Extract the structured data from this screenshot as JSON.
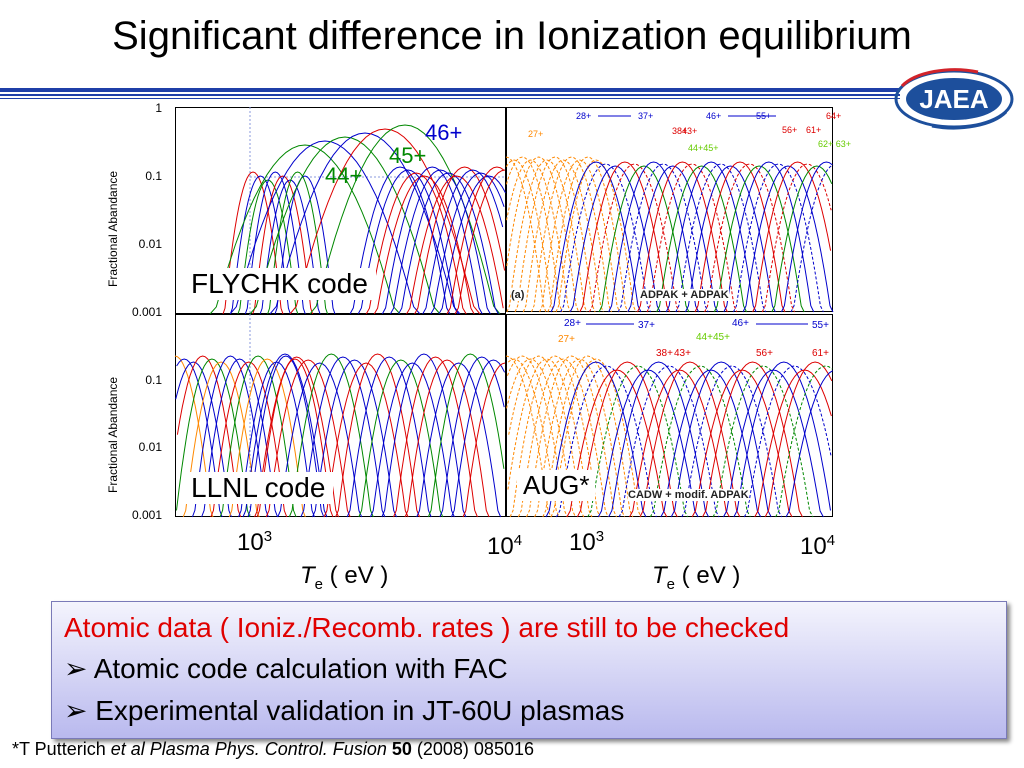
{
  "title": "Significant difference in Ionization equilibrium",
  "logo_text": "JAEA",
  "colors": {
    "rule_blue": "#1f3fa8",
    "logo_blue": "#1d4f9c",
    "logo_arc_red": "#d2232a",
    "series_blue": "#0000cc",
    "series_red": "#dd0000",
    "series_green": "#008800",
    "series_orange": "#ff8800",
    "box_red_text": "#e00000"
  },
  "panels": {
    "flychk_label": "FLYCHK code",
    "llnl_label": "LLNL code",
    "aug_label": "AUG*",
    "ylabel": "Fractional Abandance",
    "yticks_top": [
      "1",
      "0.1",
      "0.01",
      "0.001"
    ],
    "yticks_bottom": [
      "0.1",
      "0.01",
      "0.001"
    ],
    "ion_labels": {
      "i46": "46+",
      "i45": "45+",
      "i44": "44+"
    },
    "inset_a_tag": "(a)",
    "inset_a_method": "ADPAK + ADPAK",
    "inset_b_method": "CADW + modif. ADPAK",
    "xticks": {
      "left_1e3_base": "10",
      "left_1e3_exp": "3",
      "left_1e4_base": "10",
      "left_1e4_exp": "4",
      "right_1e3_base": "10",
      "right_1e3_exp": "3",
      "right_1e4_base": "10",
      "right_1e4_exp": "4"
    },
    "xaxis": {
      "t_symbol": "T",
      "t_sub": "e",
      "unit": " ( eV )"
    },
    "aug_arrows_top": [
      {
        "label": "27+",
        "color": "#ff8800"
      },
      {
        "label": "28+",
        "color": "#0000cc"
      },
      {
        "label": "37+",
        "color": "#0000cc"
      },
      {
        "label": "38+",
        "color": "#dd0000"
      },
      {
        "label": "43+",
        "color": "#dd0000"
      },
      {
        "label": "44+45+",
        "color": "#66cc00"
      },
      {
        "label": "46+",
        "color": "#0000cc"
      },
      {
        "label": "55+",
        "color": "#0000cc"
      },
      {
        "label": "56+",
        "color": "#dd0000"
      },
      {
        "label": "61+",
        "color": "#dd0000"
      },
      {
        "label": "62+ 63+",
        "color": "#66cc00"
      },
      {
        "label": "64+",
        "color": "#dd0000"
      }
    ],
    "aug_arrows_bottom": [
      {
        "label": "27+",
        "color": "#ff8800"
      },
      {
        "label": "28+",
        "color": "#0000cc"
      },
      {
        "label": "37+",
        "color": "#0000cc"
      },
      {
        "label": "38+",
        "color": "#dd0000"
      },
      {
        "label": "43+",
        "color": "#dd0000"
      },
      {
        "label": "44+45+",
        "color": "#66cc00"
      },
      {
        "label": "46+",
        "color": "#0000cc"
      },
      {
        "label": "55+",
        "color": "#0000cc"
      },
      {
        "label": "56+",
        "color": "#dd0000"
      },
      {
        "label": "61+",
        "color": "#dd0000"
      }
    ]
  },
  "box": {
    "line1": "Atomic data ( Ioniz./Recomb. rates ) are still to be checked",
    "bullet": "➢",
    "line2": "Atomic code calculation with FAC",
    "line3": "Experimental validation in JT-60U plasmas"
  },
  "footnote": {
    "prefix": "*T Putterich ",
    "italic": "et al Plasma Phys. Control. Fusion",
    "bold": "50",
    "suffix": " (2008) 085016"
  },
  "chart_data": {
    "type": "line",
    "xlabel": "Te ( eV )",
    "ylabel": "Fractional Abandance",
    "xscale": "log",
    "yscale": "log",
    "ylim": [
      0.001,
      1
    ],
    "panels": [
      "FLYCHK code",
      "LLNL code",
      "AUG* (a) ADPAK + ADPAK",
      "AUG* CADW + modif. ADPAK"
    ],
    "series": [
      {
        "name": "44+",
        "peak_te_eV": 1900,
        "peak_abundance": 0.25
      },
      {
        "name": "45+",
        "peak_te_eV": 2600,
        "peak_abundance": 0.35
      },
      {
        "name": "46+",
        "peak_te_eV": 3300,
        "peak_abundance": 0.45
      }
    ],
    "grid": false
  }
}
